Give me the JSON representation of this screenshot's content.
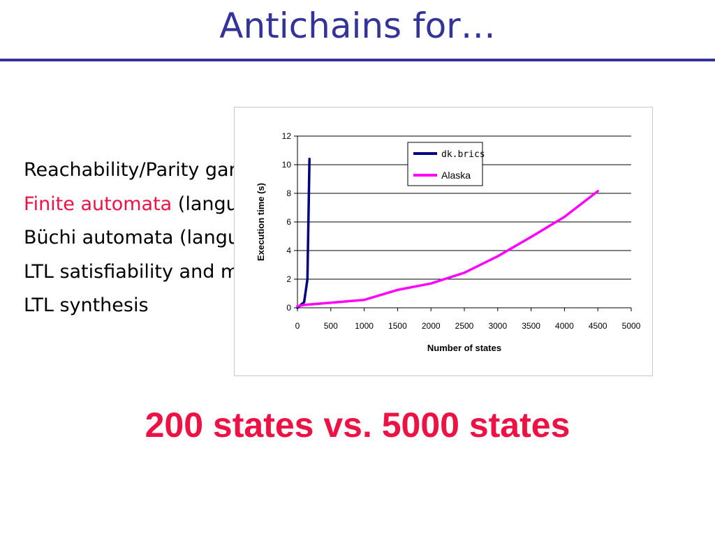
{
  "slide": {
    "title": "Antichains for…",
    "bullets": [
      {
        "highlight": "",
        "text": "Reachability/Parity games (…)"
      },
      {
        "highlight": "Finite automata",
        "text": " (language inclusion)"
      },
      {
        "highlight": "",
        "text": "Büchi automata (language inclusion)"
      },
      {
        "highlight": "",
        "text": "LTL satisfiability and model-checking"
      },
      {
        "highlight": "",
        "text": "LTL synthesis"
      }
    ],
    "callout": "200 states vs. 5000 states",
    "colors": {
      "title": "#333399",
      "highlight": "#ee1144"
    }
  },
  "chart_data": {
    "type": "line",
    "title": "",
    "xlabel": "Number of states",
    "ylabel": "Execution time (s)",
    "xlim": [
      0,
      5000
    ],
    "ylim": [
      0,
      12
    ],
    "xticks": [
      "0",
      "500",
      "1000",
      "1500",
      "2000",
      "2500",
      "3000",
      "3500",
      "4000",
      "4500",
      "5000"
    ],
    "yticks": [
      "0",
      "2",
      "4",
      "6",
      "8",
      "10",
      "12"
    ],
    "grid": "horizontal",
    "legend_position": "top-right",
    "series": [
      {
        "name": "dk.brics",
        "color": "#000080",
        "x": [
          0,
          100,
          150,
          180
        ],
        "y": [
          0,
          0.4,
          2.0,
          10.4
        ]
      },
      {
        "name": "Alaska",
        "color": "#ff00ff",
        "x": [
          0,
          100,
          500,
          1000,
          1500,
          2000,
          2500,
          3000,
          3500,
          4000,
          4500
        ],
        "y": [
          0.1,
          0.2,
          0.35,
          0.55,
          1.25,
          1.7,
          2.45,
          3.6,
          4.95,
          6.35,
          8.15
        ]
      }
    ]
  }
}
